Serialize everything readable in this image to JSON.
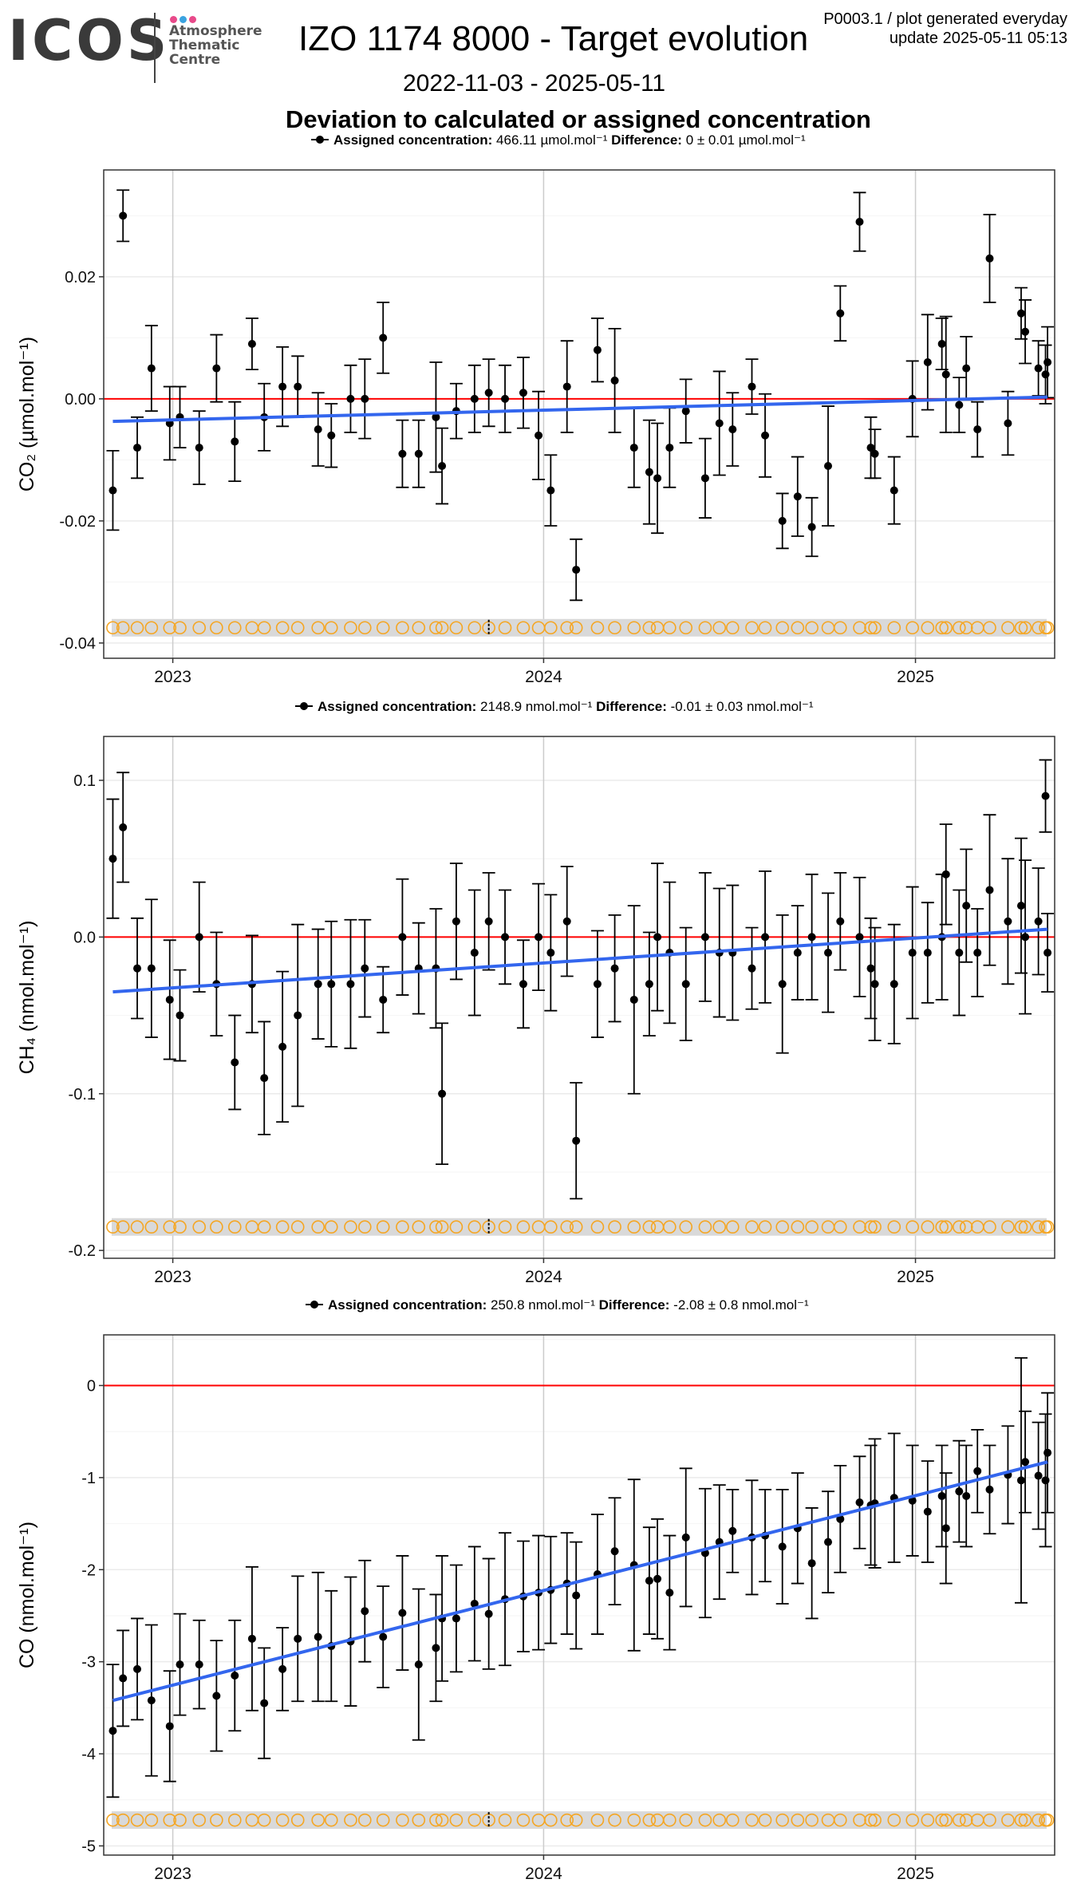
{
  "header": {
    "logo_text": "ICOS",
    "logo_sub": [
      "Atmosphere",
      "Thematic",
      "Centre"
    ],
    "title": "IZO 1174 8000 - Target evolution",
    "date_range": "2022-11-03 - 2025-05-11",
    "subtitle": "Deviation to calculated or assigned concentration",
    "plot_id": "P0003.1 / plot generated everyday",
    "update": "update  2025-05-11 05:13"
  },
  "colors": {
    "points": "#000000",
    "trend": "#3366ee",
    "zero_line": "#ff0000",
    "flag_circles": "#f5a623",
    "flag_band": "#d9d9d9",
    "logo_dots": [
      "#e84a8a",
      "#3aa3e0",
      "#e84a8a"
    ]
  },
  "chart_data": [
    {
      "type": "scatter",
      "gas": "CO2",
      "ylabel": "CO₂ (µmol.mol⁻¹)",
      "legend": {
        "label": "Assigned concentration:",
        "value": "466.11 µmol.mol⁻¹",
        "diff_label": "Difference:",
        "diff_value": "0 ± 0.01 µmol.mol⁻¹"
      },
      "xlim": [
        "2022-10-25",
        "2025-05-18"
      ],
      "ylim": [
        -0.0425,
        0.0375
      ],
      "yticks": [
        {
          "v": -0.04,
          "label": "-0.04"
        },
        {
          "v": -0.02,
          "label": "-0.02"
        },
        {
          "v": 0.0,
          "label": "0.00"
        },
        {
          "v": 0.02,
          "label": "0.02"
        }
      ],
      "xticks": [
        {
          "date": "2023-01-01",
          "label": "2023"
        },
        {
          "date": "2024-01-01",
          "label": "2024"
        },
        {
          "date": "2025-01-01",
          "label": "2025"
        }
      ],
      "trend": {
        "start": [
          "2022-11-03",
          -0.0037
        ],
        "end": [
          "2025-05-11",
          0.0003
        ]
      },
      "flag_y": -0.0375,
      "points": [
        [
          "2022-11-03",
          -0.015,
          0.0065
        ],
        [
          "2022-11-13",
          0.03,
          0.0042
        ],
        [
          "2022-11-27",
          -0.008,
          0.005
        ],
        [
          "2022-12-11",
          0.005,
          0.007
        ],
        [
          "2022-12-29",
          -0.004,
          0.006
        ],
        [
          "2023-01-08",
          -0.003,
          0.005
        ],
        [
          "2023-01-27",
          -0.008,
          0.006
        ],
        [
          "2023-02-13",
          0.005,
          0.0055
        ],
        [
          "2023-03-03",
          -0.007,
          0.0065
        ],
        [
          "2023-03-20",
          0.009,
          0.0042
        ],
        [
          "2023-04-01",
          -0.003,
          0.0055
        ],
        [
          "2023-04-19",
          0.002,
          0.0065
        ],
        [
          "2023-05-04",
          0.002,
          0.005
        ],
        [
          "2023-05-24",
          -0.005,
          0.006
        ],
        [
          "2023-06-06",
          -0.006,
          0.0052
        ],
        [
          "2023-06-25",
          0.0,
          0.0055
        ],
        [
          "2023-07-09",
          0.0,
          0.0065
        ],
        [
          "2023-07-27",
          0.01,
          0.0058
        ],
        [
          "2023-08-15",
          -0.009,
          0.0055
        ],
        [
          "2023-08-31",
          -0.009,
          0.0055
        ],
        [
          "2023-09-17",
          -0.003,
          0.009
        ],
        [
          "2023-09-23",
          -0.011,
          0.0062
        ],
        [
          "2023-10-07",
          -0.002,
          0.0045
        ],
        [
          "2023-10-25",
          0.0,
          0.0055
        ],
        [
          "2023-11-08",
          0.001,
          0.0055
        ],
        [
          "2023-11-24",
          0.0,
          0.0055
        ],
        [
          "2023-12-12",
          0.001,
          0.0058
        ],
        [
          "2023-12-27",
          -0.006,
          0.0072
        ],
        [
          "2024-01-08",
          -0.015,
          0.0058
        ],
        [
          "2024-01-24",
          0.002,
          0.0075
        ],
        [
          "2024-02-02",
          -0.028,
          0.005
        ],
        [
          "2024-02-23",
          0.008,
          0.0052
        ],
        [
          "2024-03-11",
          0.003,
          0.0085
        ],
        [
          "2024-03-30",
          -0.008,
          0.0065
        ],
        [
          "2024-04-14",
          -0.012,
          0.0085
        ],
        [
          "2024-04-22",
          -0.013,
          0.009
        ],
        [
          "2024-05-04",
          -0.008,
          0.0065
        ],
        [
          "2024-05-20",
          -0.002,
          0.0052
        ],
        [
          "2024-06-08",
          -0.013,
          0.0065
        ],
        [
          "2024-06-22",
          -0.004,
          0.0085
        ],
        [
          "2024-07-05",
          -0.005,
          0.006
        ],
        [
          "2024-07-24",
          0.002,
          0.0045
        ],
        [
          "2024-08-06",
          -0.006,
          0.0068
        ],
        [
          "2024-08-23",
          -0.02,
          0.0045
        ],
        [
          "2024-09-07",
          -0.016,
          0.0065
        ],
        [
          "2024-09-21",
          -0.021,
          0.0048
        ],
        [
          "2024-10-07",
          -0.011,
          0.0098
        ],
        [
          "2024-10-19",
          0.014,
          0.0045
        ],
        [
          "2024-11-07",
          0.029,
          0.0048
        ],
        [
          "2024-11-18",
          -0.008,
          0.005
        ],
        [
          "2024-11-22",
          -0.009,
          0.004
        ],
        [
          "2024-12-11",
          -0.015,
          0.0055
        ],
        [
          "2024-12-29",
          0.0,
          0.0062
        ],
        [
          "2025-01-13",
          0.006,
          0.0078
        ],
        [
          "2025-01-27",
          0.009,
          0.0042
        ],
        [
          "2025-01-31",
          0.004,
          0.0095
        ],
        [
          "2025-02-13",
          -0.001,
          0.0045
        ],
        [
          "2025-02-20",
          0.005,
          0.0052
        ],
        [
          "2025-03-03",
          -0.005,
          0.0045
        ],
        [
          "2025-03-15",
          0.023,
          0.0072
        ],
        [
          "2025-04-02",
          -0.004,
          0.0052
        ],
        [
          "2025-04-15",
          0.014,
          0.0042
        ],
        [
          "2025-04-19",
          0.011,
          0.0052
        ],
        [
          "2025-05-02",
          0.005,
          0.0045
        ],
        [
          "2025-05-09",
          0.004,
          0.0048
        ],
        [
          "2025-05-11",
          0.006,
          0.0058
        ]
      ]
    },
    {
      "type": "scatter",
      "gas": "CH4",
      "ylabel": "CH₄ (nmol.mol⁻¹)",
      "legend": {
        "label": "Assigned concentration:",
        "value": "2148.9 nmol.mol⁻¹",
        "diff_label": "Difference:",
        "diff_value": "-0.01 ± 0.03 nmol.mol⁻¹"
      },
      "xlim": [
        "2022-10-25",
        "2025-05-18"
      ],
      "ylim": [
        -0.205,
        0.128
      ],
      "yticks": [
        {
          "v": -0.2,
          "label": "-0.2"
        },
        {
          "v": -0.1,
          "label": "-0.1"
        },
        {
          "v": 0.0,
          "label": "0.0"
        },
        {
          "v": 0.1,
          "label": "0.1"
        }
      ],
      "xticks": [
        {
          "date": "2023-01-01",
          "label": "2023"
        },
        {
          "date": "2024-01-01",
          "label": "2024"
        },
        {
          "date": "2025-01-01",
          "label": "2025"
        }
      ],
      "trend": {
        "start": [
          "2022-11-03",
          -0.035
        ],
        "end": [
          "2025-05-11",
          0.005
        ]
      },
      "flag_y": -0.185,
      "points": [
        [
          "2022-11-03",
          0.05,
          0.038
        ],
        [
          "2022-11-13",
          0.07,
          0.035
        ],
        [
          "2022-11-27",
          -0.02,
          0.032
        ],
        [
          "2022-12-11",
          -0.02,
          0.044
        ],
        [
          "2022-12-29",
          -0.04,
          0.038
        ],
        [
          "2023-01-08",
          -0.05,
          0.029
        ],
        [
          "2023-01-27",
          0.0,
          0.035
        ],
        [
          "2023-02-13",
          -0.03,
          0.033
        ],
        [
          "2023-03-03",
          -0.08,
          0.03
        ],
        [
          "2023-03-20",
          -0.03,
          0.031
        ],
        [
          "2023-04-01",
          -0.09,
          0.036
        ],
        [
          "2023-04-19",
          -0.07,
          0.048
        ],
        [
          "2023-05-04",
          -0.05,
          0.058
        ],
        [
          "2023-05-24",
          -0.03,
          0.035
        ],
        [
          "2023-06-06",
          -0.03,
          0.04
        ],
        [
          "2023-06-25",
          -0.03,
          0.041
        ],
        [
          "2023-07-09",
          -0.02,
          0.031
        ],
        [
          "2023-07-27",
          -0.04,
          0.021
        ],
        [
          "2023-08-15",
          0.0,
          0.037
        ],
        [
          "2023-08-31",
          -0.02,
          0.029
        ],
        [
          "2023-09-17",
          -0.02,
          0.038
        ],
        [
          "2023-09-23",
          -0.1,
          0.045
        ],
        [
          "2023-10-07",
          0.01,
          0.037
        ],
        [
          "2023-10-25",
          -0.01,
          0.04
        ],
        [
          "2023-11-08",
          0.01,
          0.031
        ],
        [
          "2023-11-24",
          0.0,
          0.03
        ],
        [
          "2023-12-12",
          -0.03,
          0.028
        ],
        [
          "2023-12-27",
          0.0,
          0.034
        ],
        [
          "2024-01-08",
          -0.01,
          0.037
        ],
        [
          "2024-01-24",
          0.01,
          0.035
        ],
        [
          "2024-02-02",
          -0.13,
          0.037
        ],
        [
          "2024-02-23",
          -0.03,
          0.034
        ],
        [
          "2024-03-11",
          -0.02,
          0.034
        ],
        [
          "2024-03-30",
          -0.04,
          0.06
        ],
        [
          "2024-04-14",
          -0.03,
          0.033
        ],
        [
          "2024-04-22",
          0.0,
          0.047
        ],
        [
          "2024-05-04",
          -0.01,
          0.045
        ],
        [
          "2024-05-20",
          -0.03,
          0.036
        ],
        [
          "2024-06-08",
          0.0,
          0.041
        ],
        [
          "2024-06-22",
          -0.01,
          0.041
        ],
        [
          "2024-07-05",
          -0.01,
          0.043
        ],
        [
          "2024-07-24",
          -0.02,
          0.026
        ],
        [
          "2024-08-06",
          0.0,
          0.042
        ],
        [
          "2024-08-23",
          -0.03,
          0.044
        ],
        [
          "2024-09-07",
          -0.01,
          0.03
        ],
        [
          "2024-09-21",
          0.0,
          0.04
        ],
        [
          "2024-10-07",
          -0.01,
          0.038
        ],
        [
          "2024-10-19",
          0.01,
          0.031
        ],
        [
          "2024-11-07",
          0.0,
          0.038
        ],
        [
          "2024-11-18",
          -0.02,
          0.032
        ],
        [
          "2024-11-22",
          -0.03,
          0.036
        ],
        [
          "2024-12-11",
          -0.03,
          0.038
        ],
        [
          "2024-12-29",
          -0.01,
          0.042
        ],
        [
          "2025-01-13",
          -0.01,
          0.032
        ],
        [
          "2025-01-27",
          0.0,
          0.04
        ],
        [
          "2025-01-31",
          0.04,
          0.032
        ],
        [
          "2025-02-13",
          -0.01,
          0.04
        ],
        [
          "2025-02-20",
          0.02,
          0.036
        ],
        [
          "2025-03-03",
          -0.01,
          0.028
        ],
        [
          "2025-03-15",
          0.03,
          0.048
        ],
        [
          "2025-04-02",
          0.01,
          0.04
        ],
        [
          "2025-04-15",
          0.02,
          0.043
        ],
        [
          "2025-04-19",
          0.0,
          0.049
        ],
        [
          "2025-05-02",
          0.01,
          0.034
        ],
        [
          "2025-05-09",
          0.09,
          0.023
        ],
        [
          "2025-05-11",
          -0.01,
          0.025
        ]
      ]
    },
    {
      "type": "scatter",
      "gas": "CO",
      "ylabel": "CO (nmol.mol⁻¹)",
      "legend": {
        "label": "Assigned concentration:",
        "value": "250.8 nmol.mol⁻¹",
        "diff_label": "Difference:",
        "diff_value": "-2.08 ± 0.8 nmol.mol⁻¹"
      },
      "xlim": [
        "2022-10-25",
        "2025-05-18"
      ],
      "ylim": [
        -5.1,
        0.55
      ],
      "yticks": [
        {
          "v": -5,
          "label": "-5"
        },
        {
          "v": -4,
          "label": "-4"
        },
        {
          "v": -3,
          "label": "-3"
        },
        {
          "v": -2,
          "label": "-2"
        },
        {
          "v": -1,
          "label": "-1"
        },
        {
          "v": 0,
          "label": "0"
        }
      ],
      "xticks": [
        {
          "date": "2023-01-01",
          "label": "2023"
        },
        {
          "date": "2024-01-01",
          "label": "2024"
        },
        {
          "date": "2025-01-01",
          "label": "2025"
        }
      ],
      "trend": {
        "start": [
          "2022-11-03",
          -3.42
        ],
        "end": [
          "2025-05-11",
          -0.83
        ]
      },
      "flag_y": -4.72,
      "points": [
        [
          "2022-11-03",
          -3.75,
          0.72
        ],
        [
          "2022-11-13",
          -3.18,
          0.52
        ],
        [
          "2022-11-27",
          -3.08,
          0.55
        ],
        [
          "2022-12-11",
          -3.42,
          0.82
        ],
        [
          "2022-12-29",
          -3.7,
          0.6
        ],
        [
          "2023-01-08",
          -3.03,
          0.55
        ],
        [
          "2023-01-27",
          -3.03,
          0.48
        ],
        [
          "2023-02-13",
          -3.37,
          0.6
        ],
        [
          "2023-03-03",
          -3.15,
          0.6
        ],
        [
          "2023-03-20",
          -2.75,
          0.78
        ],
        [
          "2023-04-01",
          -3.45,
          0.6
        ],
        [
          "2023-04-19",
          -3.08,
          0.45
        ],
        [
          "2023-05-04",
          -2.75,
          0.68
        ],
        [
          "2023-05-24",
          -2.73,
          0.7
        ],
        [
          "2023-06-06",
          -2.83,
          0.6
        ],
        [
          "2023-06-25",
          -2.78,
          0.7
        ],
        [
          "2023-07-09",
          -2.45,
          0.55
        ],
        [
          "2023-07-27",
          -2.73,
          0.55
        ],
        [
          "2023-08-15",
          -2.47,
          0.62
        ],
        [
          "2023-08-31",
          -3.03,
          0.82
        ],
        [
          "2023-09-17",
          -2.85,
          0.58
        ],
        [
          "2023-09-23",
          -2.53,
          0.68
        ],
        [
          "2023-10-07",
          -2.53,
          0.58
        ],
        [
          "2023-10-25",
          -2.37,
          0.62
        ],
        [
          "2023-11-08",
          -2.48,
          0.6
        ],
        [
          "2023-11-24",
          -2.32,
          0.72
        ],
        [
          "2023-12-12",
          -2.29,
          0.6
        ],
        [
          "2023-12-27",
          -2.25,
          0.62
        ],
        [
          "2024-01-08",
          -2.22,
          0.58
        ],
        [
          "2024-01-24",
          -2.15,
          0.55
        ],
        [
          "2024-02-02",
          -2.28,
          0.58
        ],
        [
          "2024-02-23",
          -2.05,
          0.65
        ],
        [
          "2024-03-11",
          -1.8,
          0.58
        ],
        [
          "2024-03-30",
          -1.95,
          0.93
        ],
        [
          "2024-04-14",
          -2.12,
          0.58
        ],
        [
          "2024-04-22",
          -2.1,
          0.65
        ],
        [
          "2024-05-04",
          -2.25,
          0.62
        ],
        [
          "2024-05-20",
          -1.65,
          0.75
        ],
        [
          "2024-06-08",
          -1.82,
          0.7
        ],
        [
          "2024-06-22",
          -1.7,
          0.62
        ],
        [
          "2024-07-05",
          -1.58,
          0.45
        ],
        [
          "2024-07-24",
          -1.65,
          0.62
        ],
        [
          "2024-08-06",
          -1.63,
          0.5
        ],
        [
          "2024-08-23",
          -1.75,
          0.62
        ],
        [
          "2024-09-07",
          -1.55,
          0.6
        ],
        [
          "2024-09-21",
          -1.93,
          0.6
        ],
        [
          "2024-10-07",
          -1.7,
          0.55
        ],
        [
          "2024-10-19",
          -1.45,
          0.58
        ],
        [
          "2024-11-07",
          -1.27,
          0.5
        ],
        [
          "2024-11-18",
          -1.3,
          0.65
        ],
        [
          "2024-11-22",
          -1.28,
          0.7
        ],
        [
          "2024-12-11",
          -1.22,
          0.7
        ],
        [
          "2024-12-29",
          -1.25,
          0.6
        ],
        [
          "2025-01-13",
          -1.37,
          0.55
        ],
        [
          "2025-01-27",
          -1.2,
          0.55
        ],
        [
          "2025-01-31",
          -1.55,
          0.6
        ],
        [
          "2025-02-13",
          -1.15,
          0.55
        ],
        [
          "2025-02-20",
          -1.2,
          0.55
        ],
        [
          "2025-03-03",
          -0.93,
          0.45
        ],
        [
          "2025-03-15",
          -1.13,
          0.48
        ],
        [
          "2025-04-02",
          -0.97,
          0.53
        ],
        [
          "2025-04-15",
          -1.03,
          1.33
        ],
        [
          "2025-04-19",
          -0.83,
          0.55
        ],
        [
          "2025-05-02",
          -0.98,
          0.58
        ],
        [
          "2025-05-09",
          -1.03,
          0.72
        ],
        [
          "2025-05-11",
          -0.73,
          0.65
        ]
      ]
    }
  ]
}
